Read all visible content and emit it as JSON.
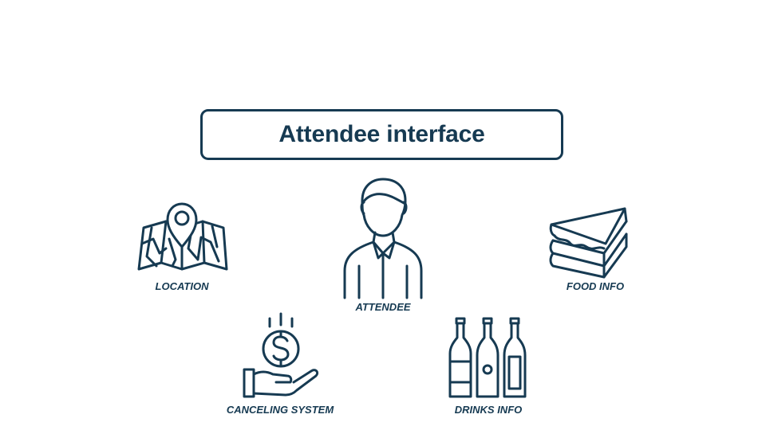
{
  "title": "Attendee interface",
  "colors": {
    "primary": "#163a52"
  },
  "items": {
    "location": {
      "label": "LOCATION",
      "icon": "map-pin-icon"
    },
    "attendee": {
      "label": "ATTENDEE",
      "icon": "person-icon"
    },
    "food": {
      "label": "FOOD INFO",
      "icon": "sandwich-icon"
    },
    "canceling": {
      "label": "CANCELING SYSTEM",
      "icon": "hand-coin-icon"
    },
    "drinks": {
      "label": "DRINKS INFO",
      "icon": "bottles-icon"
    }
  }
}
